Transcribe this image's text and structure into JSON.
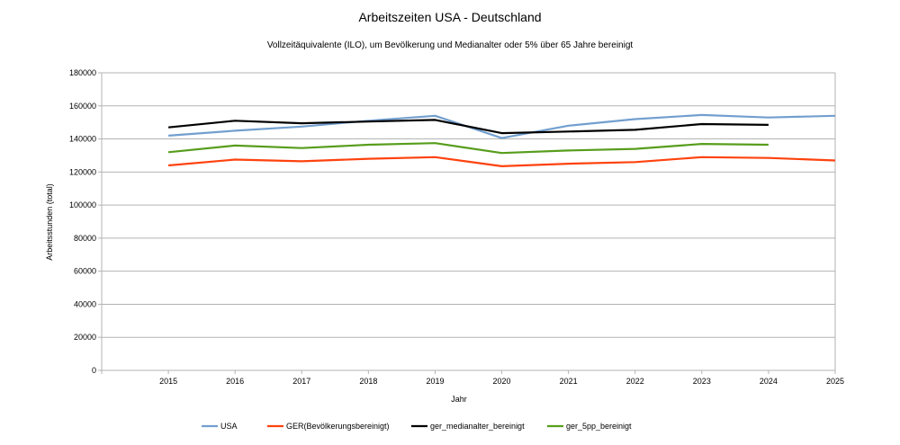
{
  "chart_data": {
    "type": "line",
    "title": "Arbeitszeiten USA - Deutschland",
    "subtitle": "Vollzeitäquivalente (ILO), um Bevölkerung und Medianalter oder 5% über 65 Jahre bereinigt",
    "xlabel": "Jahr",
    "ylabel": "Arbeitsstunden (total)",
    "ylim": [
      0,
      180000
    ],
    "yticks": [
      0,
      20000,
      40000,
      60000,
      80000,
      100000,
      120000,
      140000,
      160000,
      180000
    ],
    "x": [
      "2015",
      "2016",
      "2017",
      "2018",
      "2019",
      "2020",
      "2021",
      "2022",
      "2023",
      "2024",
      "2025"
    ],
    "grid": true,
    "legend_position": "bottom",
    "series": [
      {
        "name": "USA",
        "color": "#729fcf",
        "values": [
          142000,
          145000,
          147500,
          151000,
          154000,
          140500,
          148000,
          152000,
          154500,
          153000,
          154000
        ]
      },
      {
        "name": "GER(Bevölkerungsbereinigt)",
        "color": "#ff420e",
        "values": [
          124000,
          127500,
          126500,
          128000,
          129000,
          123500,
          125000,
          126000,
          129000,
          128500,
          127000
        ]
      },
      {
        "name": "ger_medianalter_bereinigt",
        "color": "#000000",
        "values": [
          147000,
          151000,
          149500,
          150500,
          151500,
          143500,
          144500,
          145500,
          149000,
          148500,
          null
        ]
      },
      {
        "name": "ger_5pp_bereinigt",
        "color": "#579d1c",
        "values": [
          132000,
          136000,
          134500,
          136500,
          137500,
          131500,
          133000,
          134000,
          137000,
          136500,
          null
        ]
      }
    ]
  }
}
